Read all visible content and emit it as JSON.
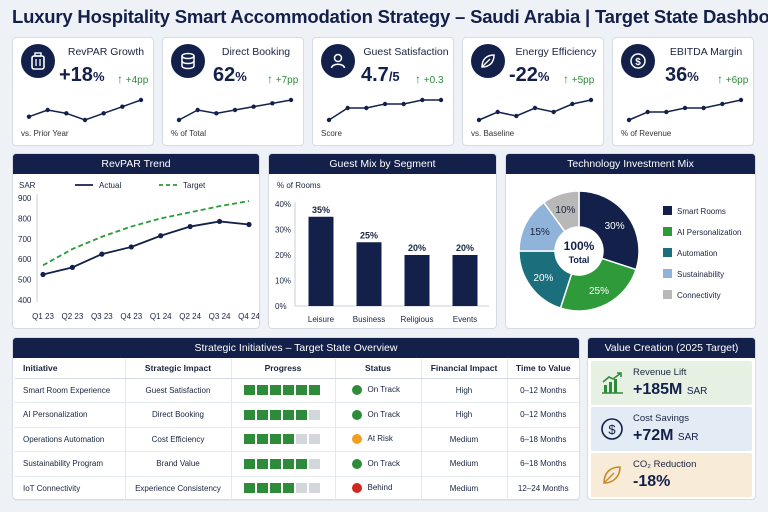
{
  "header": {
    "title": "Luxury Hospitality Smart Accommodation Strategy – Saudi Arabia | Target State Dashboard"
  },
  "kpis": [
    {
      "title": "RevPAR Growth",
      "value": "+18",
      "suffix": "%",
      "delta": "+4pp",
      "sub": "vs. Prior Year",
      "icon": "luggage-icon",
      "trend": [
        4,
        6,
        5,
        3,
        5,
        7,
        9
      ]
    },
    {
      "title": "Direct Booking",
      "value": "62",
      "suffix": "%",
      "delta": "+7pp",
      "sub": "% of Total",
      "icon": "database-icon",
      "trend": [
        2,
        5,
        4,
        5,
        6,
        7,
        8
      ]
    },
    {
      "title": "Guest Satisfaction",
      "value": "4.7",
      "suffix": "/5",
      "delta": "+0.3",
      "sub": "Score",
      "icon": "user-icon",
      "trend": [
        3,
        6,
        6,
        7,
        7,
        8,
        8
      ]
    },
    {
      "title": "Energy Efficiency",
      "value": "-22",
      "suffix": "%",
      "delta": "+5pp",
      "sub": "vs. Baseline",
      "icon": "leaf-icon",
      "trend": [
        3,
        5,
        4,
        6,
        5,
        7,
        8
      ]
    },
    {
      "title": "EBITDA Margin",
      "value": "36",
      "suffix": "%",
      "delta": "+6pp",
      "sub": "% of Revenue",
      "icon": "dollar-icon",
      "trend": [
        3,
        5,
        5,
        6,
        6,
        7,
        8
      ]
    }
  ],
  "revpar": {
    "title": "RevPAR Trend",
    "unit": "SAR",
    "legend_actual": "Actual",
    "legend_target": "Target"
  },
  "guest_mix": {
    "title": "Guest Mix by Segment",
    "ylabel": "% of Rooms"
  },
  "tech": {
    "title": "Technology Investment Mix",
    "center_value": "100%",
    "center_label": "Total"
  },
  "chart_data": [
    {
      "type": "line",
      "title": "RevPAR Trend",
      "ylabel": "SAR",
      "categories": [
        "Q1 23",
        "Q2 23",
        "Q3 23",
        "Q4 23",
        "Q1 24",
        "Q2 24",
        "Q3 24",
        "Q4 24"
      ],
      "ylim": [
        400,
        900
      ],
      "yticks": [
        "400",
        "500",
        "600",
        "700",
        "800",
        "900"
      ],
      "series": [
        {
          "name": "Actual",
          "values": [
            525,
            560,
            625,
            660,
            715,
            760,
            785,
            770
          ],
          "color": "#13204a",
          "style": "solid"
        },
        {
          "name": "Target",
          "values": [
            570,
            650,
            710,
            760,
            800,
            830,
            860,
            885
          ],
          "color": "#2e9a3a",
          "style": "dashed"
        }
      ],
      "legend": "top"
    },
    {
      "type": "bar",
      "title": "Guest Mix by Segment",
      "ylabel": "% of Rooms",
      "categories": [
        "Leisure",
        "Business",
        "Religious",
        "Events"
      ],
      "values": [
        35,
        25,
        20,
        20
      ],
      "data_labels": [
        "35%",
        "25%",
        "20%",
        "20%"
      ],
      "ylim": [
        0,
        40
      ],
      "yticks": [
        "0%",
        "10%",
        "20%",
        "30%",
        "40%"
      ],
      "color": "#13204a"
    },
    {
      "type": "pie",
      "title": "Technology Investment Mix",
      "categories": [
        "Smart Rooms",
        "AI Personalization",
        "Automation",
        "Sustainability",
        "Connectivity"
      ],
      "values": [
        30,
        25,
        20,
        15,
        10
      ],
      "data_labels": [
        "30%",
        "25%",
        "20%",
        "15%",
        "10%"
      ],
      "colors": [
        "#13204a",
        "#2e9a3a",
        "#1b6e7c",
        "#8fb3d9",
        "#b8b8b8"
      ],
      "legend": "right"
    }
  ],
  "initiatives": {
    "title": "Strategic Initiatives – Target State Overview",
    "columns": [
      "Initiative",
      "Strategic Impact",
      "Progress",
      "Status",
      "Financial Impact",
      "Time to Value"
    ],
    "rows": [
      {
        "name": "Smart Room Experience",
        "impact": "Guest Satisfaction",
        "progress": 6,
        "status": "On Track",
        "status_color": "#2e8b3a",
        "financial": "High",
        "time": "0–12 Months"
      },
      {
        "name": "AI Personalization",
        "impact": "Direct Booking",
        "progress": 5,
        "status": "On Track",
        "status_color": "#2e8b3a",
        "financial": "High",
        "time": "0–12 Months"
      },
      {
        "name": "Operations Automation",
        "impact": "Cost Efficiency",
        "progress": 4,
        "status": "At Risk",
        "status_color": "#f0a020",
        "financial": "Medium",
        "time": "6–18 Months"
      },
      {
        "name": "Sustainability Program",
        "impact": "Brand Value",
        "progress": 5,
        "status": "On Track",
        "status_color": "#2e8b3a",
        "financial": "Medium",
        "time": "6–18 Months"
      },
      {
        "name": "IoT Connectivity",
        "impact": "Experience Consistency",
        "progress": 4,
        "status": "Behind",
        "status_color": "#d0281e",
        "financial": "Medium",
        "time": "12–24 Months"
      }
    ],
    "progress_total": 6
  },
  "value_creation": {
    "title": "Value Creation (2025 Target)",
    "items": [
      {
        "label": "Revenue Lift",
        "value": "+185M",
        "unit": "SAR",
        "icon": "growth-chart-icon",
        "bg": "#e6f1e3"
      },
      {
        "label": "Cost Savings",
        "value": "+72M",
        "unit": "SAR",
        "icon": "dollar-icon",
        "bg": "#e3ebf5"
      },
      {
        "label": "CO₂ Reduction",
        "value": "-18%",
        "unit": "",
        "icon": "leaf-icon",
        "bg": "#f8ecd9"
      }
    ]
  }
}
